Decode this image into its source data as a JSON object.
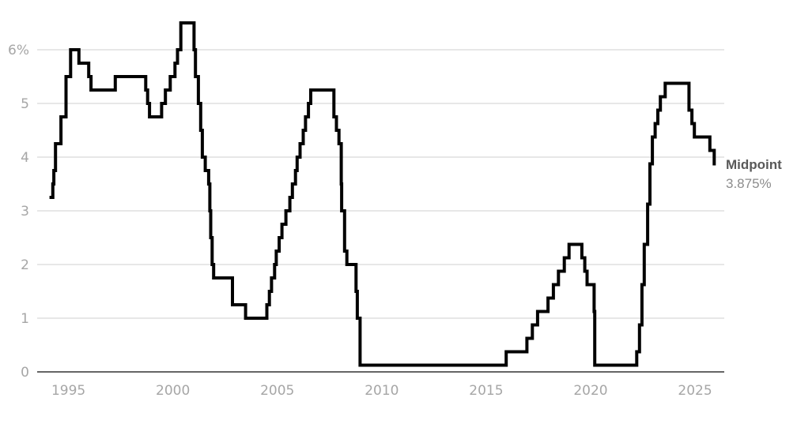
{
  "chart_data": {
    "type": "line",
    "step": true,
    "title": "",
    "xlabel": "",
    "ylabel": "",
    "xlim": [
      1993.5,
      2026.4
    ],
    "ylim": [
      0,
      6.5
    ],
    "grid": true,
    "y_ticks": [
      {
        "value": 0,
        "label": "0"
      },
      {
        "value": 1,
        "label": "1"
      },
      {
        "value": 2,
        "label": "2"
      },
      {
        "value": 3,
        "label": "3"
      },
      {
        "value": 4,
        "label": "4"
      },
      {
        "value": 5,
        "label": "5"
      },
      {
        "value": 6,
        "label": "6%"
      }
    ],
    "x_ticks": [
      {
        "value": 1995,
        "label": "1995"
      },
      {
        "value": 2000,
        "label": "2000"
      },
      {
        "value": 2005,
        "label": "2005"
      },
      {
        "value": 2010,
        "label": "2010"
      },
      {
        "value": 2015,
        "label": "2015"
      },
      {
        "value": 2020,
        "label": "2020"
      },
      {
        "value": 2025,
        "label": "2025"
      }
    ],
    "series": [
      {
        "color": "#000000",
        "points": [
          [
            1994.09,
            3.25
          ],
          [
            1994.25,
            3.5
          ],
          [
            1994.3,
            3.75
          ],
          [
            1994.38,
            4.25
          ],
          [
            1994.64,
            4.75
          ],
          [
            1994.88,
            5.5
          ],
          [
            1995.1,
            6.0
          ],
          [
            1995.5,
            5.75
          ],
          [
            1995.97,
            5.5
          ],
          [
            1996.08,
            5.25
          ],
          [
            1997.24,
            5.5
          ],
          [
            1998.7,
            5.25
          ],
          [
            1998.79,
            5.0
          ],
          [
            1998.88,
            4.75
          ],
          [
            1999.46,
            5.0
          ],
          [
            1999.64,
            5.25
          ],
          [
            1999.87,
            5.5
          ],
          [
            2000.1,
            5.75
          ],
          [
            2000.22,
            6.0
          ],
          [
            2000.38,
            6.5
          ],
          [
            2001.01,
            6.0
          ],
          [
            2001.08,
            5.5
          ],
          [
            2001.22,
            5.0
          ],
          [
            2001.33,
            4.5
          ],
          [
            2001.41,
            4.0
          ],
          [
            2001.55,
            3.75
          ],
          [
            2001.71,
            3.5
          ],
          [
            2001.77,
            3.0
          ],
          [
            2001.81,
            2.5
          ],
          [
            2001.88,
            2.0
          ],
          [
            2001.95,
            1.75
          ],
          [
            2002.85,
            1.25
          ],
          [
            2003.48,
            1.0
          ],
          [
            2004.5,
            1.25
          ],
          [
            2004.62,
            1.5
          ],
          [
            2004.72,
            1.75
          ],
          [
            2004.87,
            2.0
          ],
          [
            2004.95,
            2.25
          ],
          [
            2005.09,
            2.5
          ],
          [
            2005.22,
            2.75
          ],
          [
            2005.41,
            3.0
          ],
          [
            2005.6,
            3.25
          ],
          [
            2005.72,
            3.5
          ],
          [
            2005.87,
            3.75
          ],
          [
            2005.95,
            4.0
          ],
          [
            2006.09,
            4.25
          ],
          [
            2006.24,
            4.5
          ],
          [
            2006.35,
            4.75
          ],
          [
            2006.49,
            5.0
          ],
          [
            2006.6,
            5.25
          ],
          [
            2007.71,
            4.75
          ],
          [
            2007.83,
            4.5
          ],
          [
            2007.95,
            4.25
          ],
          [
            2008.06,
            3.5
          ],
          [
            2008.08,
            3.0
          ],
          [
            2008.22,
            2.25
          ],
          [
            2008.33,
            2.0
          ],
          [
            2008.77,
            1.5
          ],
          [
            2008.83,
            1.0
          ],
          [
            2008.96,
            0.125
          ],
          [
            2015.96,
            0.375
          ],
          [
            2016.95,
            0.625
          ],
          [
            2017.21,
            0.875
          ],
          [
            2017.46,
            1.125
          ],
          [
            2017.96,
            1.375
          ],
          [
            2018.22,
            1.625
          ],
          [
            2018.46,
            1.875
          ],
          [
            2018.74,
            2.125
          ],
          [
            2018.97,
            2.375
          ],
          [
            2019.58,
            2.125
          ],
          [
            2019.72,
            1.875
          ],
          [
            2019.83,
            1.625
          ],
          [
            2020.17,
            1.125
          ],
          [
            2020.2,
            0.125
          ],
          [
            2022.21,
            0.375
          ],
          [
            2022.34,
            0.875
          ],
          [
            2022.46,
            1.625
          ],
          [
            2022.57,
            2.375
          ],
          [
            2022.73,
            3.125
          ],
          [
            2022.84,
            3.875
          ],
          [
            2022.96,
            4.375
          ],
          [
            2023.09,
            4.625
          ],
          [
            2023.22,
            4.875
          ],
          [
            2023.34,
            5.125
          ],
          [
            2023.57,
            5.375
          ],
          [
            2024.71,
            4.875
          ],
          [
            2024.85,
            4.625
          ],
          [
            2024.97,
            4.375
          ],
          [
            2025.71,
            4.125
          ],
          [
            2025.92,
            3.875
          ]
        ]
      }
    ],
    "end_label": {
      "title": "Midpoint",
      "value": "3.875%"
    }
  }
}
